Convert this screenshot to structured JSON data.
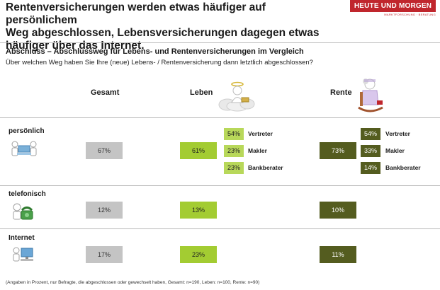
{
  "header": {
    "headline_line1": "Rentenversicherungen werden etwas häufiger auf persönlichem",
    "headline_line2": "Weg abgeschlossen, Lebensversicherungen dagegen etwas",
    "headline_line3": "häufiger über das Internet.",
    "logo_text": "HEUTE UND MORGEN",
    "logo_sub": "MARKTFORSCHUNG · BERATUNG"
  },
  "colors": {
    "brand_red": "#c0262d",
    "gesamt": "#c4c4c4",
    "leben": "#a3cc32",
    "leben_sub": "#b8d85a",
    "rente": "#545c1f"
  },
  "chart_data": {
    "type": "table",
    "title": "Abschluss – Abschlussweg für Lebens- und Rentenversicherungen im Vergleich",
    "subtitle": "Über welchen Weg haben Sie Ihre (neue) Lebens- / Rentenversicherung dann letztlich abgeschlossen?",
    "columns": [
      "Gesamt",
      "Leben",
      "Rente"
    ],
    "rows": [
      {
        "label": "persönlich",
        "icon": "meeting-icon",
        "values": [
          "67%",
          "61%",
          "73%"
        ],
        "breakdown_labels": [
          "Vertreter",
          "Makler",
          "Bankberater"
        ],
        "leben_breakdown": [
          "54%",
          "23%",
          "23%"
        ],
        "rente_breakdown": [
          "54%",
          "33%",
          "14%"
        ]
      },
      {
        "label": "telefonisch",
        "icon": "telephone-icon",
        "values": [
          "12%",
          "13%",
          "10%"
        ]
      },
      {
        "label": "Internet",
        "icon": "computer-icon",
        "values": [
          "17%",
          "23%",
          "11%"
        ]
      }
    ],
    "footnote": "(Angaben in Prozent, nur Befragte, die abgeschlossen oder gewechselt haben, Gesamt: n=190, Leben: n=100, Rente: n=90)"
  }
}
